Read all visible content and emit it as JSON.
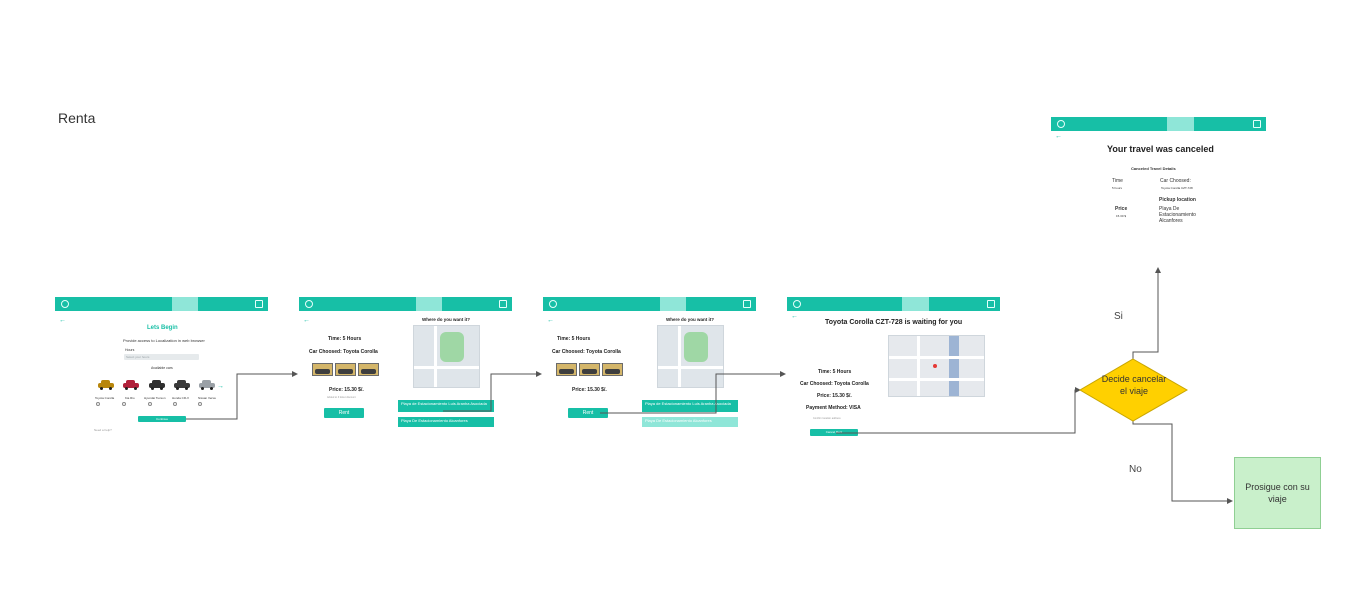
{
  "board": {
    "title": "Renta"
  },
  "decision": {
    "text": "Decide cancelar el viaje"
  },
  "end_node": {
    "text": "Prosigue con su viaje"
  },
  "labels": {
    "yes": "Si",
    "no": "No"
  },
  "screen1": {
    "title": "Lets Begin",
    "subtitle": "Provide access to Localization in web browser",
    "field_label": "Hours",
    "field_placeholder": "Select your hours",
    "section": "Available cars",
    "cars": [
      {
        "name": "Toyota Corolla",
        "color": "#b8860b"
      },
      {
        "name": "Kia Rio",
        "color": "#b0203a"
      },
      {
        "name": "Hyundai Tucson",
        "color": "#2f2f2f"
      },
      {
        "name": "Honda CR-V",
        "color": "#3a3a3a"
      },
      {
        "name": "Nissan Versa",
        "color": "#9aa0a6"
      }
    ],
    "button": "Continue",
    "footer": "Need a help?"
  },
  "screen2": {
    "time": "Time: 5 Hours",
    "car": "Car Choosed: Toyota Corolla",
    "price": "Price: 15.30 $/.",
    "price_note": "Added to 3 ticket discount",
    "rent_button": "Rent",
    "map_title": "Where do you want it?",
    "locations": [
      "Playa de Estacionamiento Luis Aranha Asociada",
      "Playa De Estacionamiento Alcanfores"
    ]
  },
  "screen3": {
    "time": "Time: 5 Hours",
    "car": "Car Choosed: Toyota Corolla",
    "price": "Price: 15.30 $/.",
    "rent_button": "Rent",
    "map_title": "Where do you want it?",
    "locations": [
      "Playa de Estacionamiento Luis Aranha Asociada",
      "Playa De Estacionamiento Alcanfores"
    ]
  },
  "screen4": {
    "title": "Toyota Corolla CZT-728 is waiting for you",
    "time": "Time: 5 Hours",
    "car": "Car Choosed: Toyota Corolla",
    "price": "Price: 15.30 $/.",
    "payment": "Payment Method: VISA",
    "note": "Confirm location address",
    "button": "Cancel Rent"
  },
  "screen5": {
    "title": "Your travel was canceled",
    "subtitle": "Canceled Travel Details",
    "time_label": "Time",
    "time_value": "5 hours",
    "car_label": "Car Choosed:",
    "car_value": "Toyota Corolla CZT-728",
    "pickup_label": "Pickup location",
    "pickup_value": "Playa De Estacionamiento Alcanfores",
    "price_label": "Price",
    "price_value": "15.30 $"
  },
  "colors": {
    "primary": "#17bfa6",
    "primary_light": "#8fe6d8",
    "decision": "#ffd000",
    "end": "#c9f0cb"
  }
}
